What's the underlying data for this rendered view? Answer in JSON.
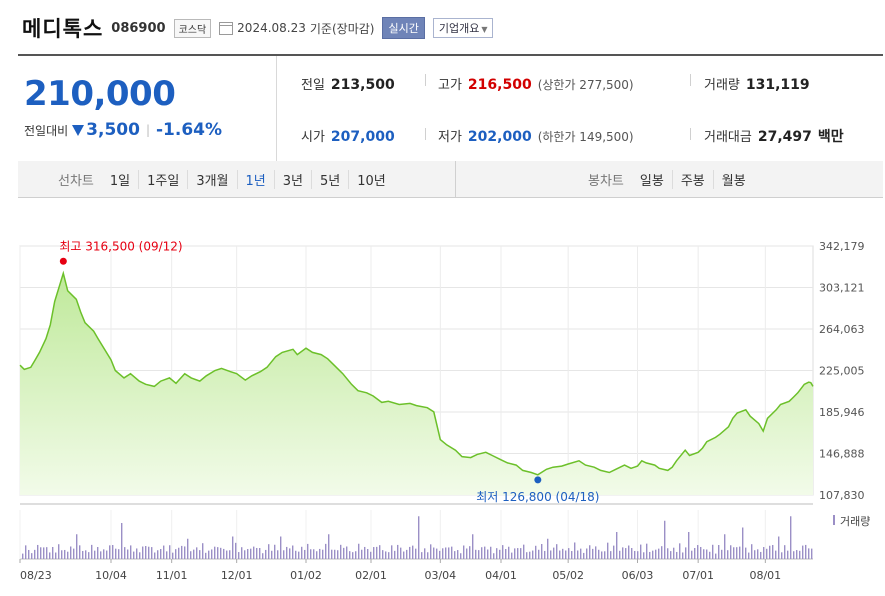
{
  "header": {
    "name": "메디톡스",
    "code": "086900",
    "market": "코스닥",
    "date": "2024.08.23",
    "date_note": "기준(장마감)",
    "realtime_label": "실시간",
    "company_label": "기업개요"
  },
  "summary": {
    "price": "210,000",
    "change_label": "전일대비",
    "change": "3,500",
    "change_pct": "-1.64%",
    "prev_label": "전일",
    "prev": "213,500",
    "high_label": "고가",
    "high": "216,500",
    "upper_label": "(상한가 277,500)",
    "volume_label": "거래량",
    "volume": "131,119",
    "open_label": "시가",
    "open": "207,000",
    "low_label": "저가",
    "low": "202,000",
    "lower_label": "(하한가 149,500)",
    "amount_label": "거래대금",
    "amount": "27,497",
    "amount_unit": "백만"
  },
  "periods": {
    "line_title": "선차트",
    "line_items": [
      "1일",
      "1주일",
      "3개월",
      "1년",
      "3년",
      "5년",
      "10년"
    ],
    "selected": "1년",
    "candle_title": "봉차트",
    "candle_items": [
      "일봉",
      "주봉",
      "월봉"
    ]
  },
  "chart_data": {
    "type": "area",
    "x_range": [
      "2023-08-23",
      "2024-08-23"
    ],
    "y_ticks": [
      "342,179",
      "303,121",
      "264,063",
      "225,005",
      "185,946",
      "146,888",
      "107,830"
    ],
    "ylim": [
      107830,
      342179
    ],
    "x_ticks": [
      "08/23",
      "10/04",
      "11/01",
      "12/01",
      "01/02",
      "02/01",
      "03/04",
      "04/01",
      "05/02",
      "06/03",
      "07/01",
      "08/01"
    ],
    "grid": true,
    "high_annotation": "최고 316,500 (09/12)",
    "low_annotation": "최저 126,800 (04/18)",
    "high": {
      "date": "2023-09-12",
      "value": 316500
    },
    "low": {
      "date": "2024-04-18",
      "value": 126800
    },
    "volume_label": "거래량",
    "colors": {
      "line": "#6cc02a",
      "fill_top": "#bfe99a",
      "fill_bottom": "#f2fbe9",
      "high": "#e60012",
      "low": "#1d5fc0",
      "volume": "#9b8fc6"
    },
    "series": [
      {
        "values": [
          [
            "2023-08-23",
            230000
          ],
          [
            "2023-08-25",
            226000
          ],
          [
            "2023-08-28",
            228000
          ],
          [
            "2023-08-30",
            235000
          ],
          [
            "2023-09-01",
            242000
          ],
          [
            "2023-09-04",
            255000
          ],
          [
            "2023-09-06",
            268000
          ],
          [
            "2023-09-08",
            290000
          ],
          [
            "2023-09-11",
            310000
          ],
          [
            "2023-09-12",
            316500
          ],
          [
            "2023-09-14",
            300000
          ],
          [
            "2023-09-18",
            292000
          ],
          [
            "2023-09-20",
            280000
          ],
          [
            "2023-09-22",
            270000
          ],
          [
            "2023-09-26",
            262000
          ],
          [
            "2023-09-28",
            255000
          ],
          [
            "2023-10-04",
            235000
          ],
          [
            "2023-10-06",
            225000
          ],
          [
            "2023-10-10",
            218000
          ],
          [
            "2023-10-13",
            222000
          ],
          [
            "2023-10-17",
            215000
          ],
          [
            "2023-10-20",
            212000
          ],
          [
            "2023-10-24",
            210000
          ],
          [
            "2023-10-27",
            215000
          ],
          [
            "2023-10-31",
            218000
          ],
          [
            "2023-11-03",
            213000
          ],
          [
            "2023-11-07",
            222000
          ],
          [
            "2023-11-10",
            218000
          ],
          [
            "2023-11-14",
            215000
          ],
          [
            "2023-11-17",
            220000
          ],
          [
            "2023-11-21",
            225000
          ],
          [
            "2023-11-24",
            227000
          ],
          [
            "2023-11-28",
            224000
          ],
          [
            "2023-12-01",
            222000
          ],
          [
            "2023-12-05",
            216000
          ],
          [
            "2023-12-08",
            220000
          ],
          [
            "2023-12-12",
            224000
          ],
          [
            "2023-12-15",
            228000
          ],
          [
            "2023-12-19",
            238000
          ],
          [
            "2023-12-22",
            242000
          ],
          [
            "2023-12-27",
            245000
          ],
          [
            "2023-12-29",
            240000
          ],
          [
            "2024-01-02",
            246000
          ],
          [
            "2024-01-05",
            242000
          ],
          [
            "2024-01-09",
            240000
          ],
          [
            "2024-01-12",
            236000
          ],
          [
            "2024-01-16",
            228000
          ],
          [
            "2024-01-19",
            222000
          ],
          [
            "2024-01-23",
            212000
          ],
          [
            "2024-01-26",
            206000
          ],
          [
            "2024-01-30",
            204000
          ],
          [
            "2024-02-02",
            201000
          ],
          [
            "2024-02-06",
            195000
          ],
          [
            "2024-02-09",
            196000
          ],
          [
            "2024-02-14",
            193000
          ],
          [
            "2024-02-19",
            194000
          ],
          [
            "2024-02-22",
            192000
          ],
          [
            "2024-02-27",
            190000
          ],
          [
            "2024-03-01",
            186000
          ],
          [
            "2024-03-04",
            160000
          ],
          [
            "2024-03-07",
            155000
          ],
          [
            "2024-03-11",
            150000
          ],
          [
            "2024-03-14",
            144000
          ],
          [
            "2024-03-18",
            143000
          ],
          [
            "2024-03-21",
            146000
          ],
          [
            "2024-03-25",
            148000
          ],
          [
            "2024-03-28",
            145000
          ],
          [
            "2024-04-01",
            141000
          ],
          [
            "2024-04-04",
            138000
          ],
          [
            "2024-04-08",
            136000
          ],
          [
            "2024-04-11",
            131000
          ],
          [
            "2024-04-15",
            129000
          ],
          [
            "2024-04-18",
            126800
          ],
          [
            "2024-04-22",
            132000
          ],
          [
            "2024-04-25",
            134000
          ],
          [
            "2024-04-29",
            135000
          ],
          [
            "2024-05-02",
            137000
          ],
          [
            "2024-05-07",
            140000
          ],
          [
            "2024-05-10",
            136000
          ],
          [
            "2024-05-14",
            134000
          ],
          [
            "2024-05-17",
            131000
          ],
          [
            "2024-05-21",
            129000
          ],
          [
            "2024-05-24",
            132000
          ],
          [
            "2024-05-28",
            136000
          ],
          [
            "2024-05-31",
            133000
          ],
          [
            "2024-06-03",
            135000
          ],
          [
            "2024-06-05",
            140000
          ],
          [
            "2024-06-07",
            138000
          ],
          [
            "2024-06-11",
            136000
          ],
          [
            "2024-06-13",
            133000
          ],
          [
            "2024-06-17",
            131000
          ],
          [
            "2024-06-19",
            134000
          ],
          [
            "2024-06-21",
            140000
          ],
          [
            "2024-06-25",
            150000
          ],
          [
            "2024-06-27",
            145000
          ],
          [
            "2024-07-01",
            148000
          ],
          [
            "2024-07-03",
            152000
          ],
          [
            "2024-07-05",
            158000
          ],
          [
            "2024-07-09",
            162000
          ],
          [
            "2024-07-11",
            165000
          ],
          [
            "2024-07-15",
            172000
          ],
          [
            "2024-07-17",
            180000
          ],
          [
            "2024-07-19",
            185000
          ],
          [
            "2024-07-23",
            188000
          ],
          [
            "2024-07-25",
            182000
          ],
          [
            "2024-07-29",
            175000
          ],
          [
            "2024-07-31",
            168000
          ],
          [
            "2024-08-02",
            180000
          ],
          [
            "2024-08-06",
            188000
          ],
          [
            "2024-08-08",
            193000
          ],
          [
            "2024-08-12",
            196000
          ],
          [
            "2024-08-14",
            200000
          ],
          [
            "2024-08-16",
            204000
          ],
          [
            "2024-08-19",
            212000
          ],
          [
            "2024-08-21",
            214000
          ],
          [
            "2024-08-22",
            213500
          ],
          [
            "2024-08-23",
            210000
          ]
        ]
      }
    ]
  }
}
